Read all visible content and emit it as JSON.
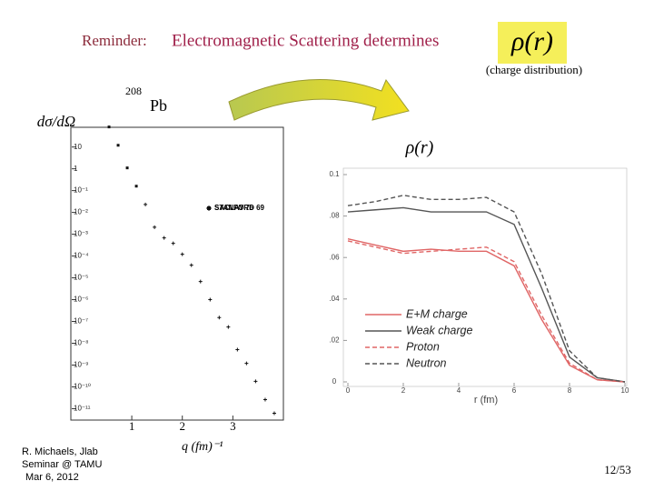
{
  "slide": {
    "reminder": "Reminder:",
    "heading": "Electromagnetic Scattering  determines",
    "rho": "ρ(r)",
    "note": "(charge distribution)",
    "mass_number": "208",
    "element": "Pb",
    "author": [
      "R. Michaels,  Jlab",
      "Seminar @ TAMU",
      "Mar 6, 2012"
    ],
    "page": "12/53"
  },
  "chart_data": [
    {
      "type": "scatter",
      "ylabel": "dσ/dΩ",
      "xlabel": "q  (fm)⁻¹",
      "log_y": true,
      "xlim": [
        0.1,
        4.0
      ],
      "xticks": [
        1,
        2,
        3
      ],
      "ylim": [
        3e-12,
        80
      ],
      "yticks": [
        10,
        1,
        {
          "value": 0.1,
          "label": "10⁻¹"
        },
        {
          "value": 0.01,
          "label": "10⁻²"
        },
        {
          "value": 0.001,
          "label": "10⁻³"
        },
        {
          "value": 0.0001,
          "label": "10⁻⁴"
        },
        {
          "value": 1e-05,
          "label": "10⁻⁵"
        },
        {
          "value": 1e-06,
          "label": "10⁻⁶"
        },
        {
          "value": 1e-07,
          "label": "10⁻⁷"
        },
        {
          "value": 1e-08,
          "label": "10⁻⁸"
        },
        {
          "value": 1e-09,
          "label": "10⁻⁹"
        },
        {
          "value": 1e-10,
          "label": "10⁻¹⁰"
        },
        {
          "value": 1e-11,
          "label": "10⁻¹¹"
        }
      ],
      "series": [
        {
          "name": "STANFORD 69",
          "color": "#111111",
          "marker": "square",
          "x": [
            0.55,
            0.73,
            0.91,
            1.09
          ],
          "values": [
            83,
            12,
            1.1,
            0.16
          ]
        },
        {
          "name": "SACLAY 76",
          "color": "#111111",
          "marker": "plus",
          "x": [
            1.27,
            1.45,
            1.64,
            1.82,
            2.0,
            2.18,
            2.36,
            2.55,
            2.73,
            2.91,
            3.09,
            3.27,
            3.45,
            3.64,
            3.82
          ],
          "values": [
            0.023,
            0.0021,
            0.00068,
            0.00038,
            0.00012,
            3.8e-05,
            6.8e-06,
            1e-06,
            1.5e-07,
            5.6e-08,
            5.1e-09,
            1.2e-09,
            1.8e-10,
            2.6e-11,
            6.2e-12
          ]
        }
      ]
    },
    {
      "type": "line",
      "xlabel": "r (fm)",
      "x": [
        0,
        1,
        2,
        3,
        4,
        5,
        6,
        7,
        8,
        9,
        10
      ],
      "xlim": [
        0,
        10
      ],
      "xticks": [
        0,
        2,
        4,
        6,
        8,
        10
      ],
      "ylim": [
        0,
        0.1
      ],
      "yticks": [
        0,
        {
          "value": 0.02,
          "label": ".02"
        },
        {
          "value": 0.04,
          "label": ".04"
        },
        {
          "value": 0.06,
          "label": ".06"
        },
        {
          "value": 0.08,
          "label": ".08"
        },
        0.1
      ],
      "series": [
        {
          "name": "E+M charge",
          "color": "#e06666",
          "dashed": false,
          "values": [
            0.069,
            0.066,
            0.063,
            0.064,
            0.063,
            0.063,
            0.056,
            0.03,
            0.008,
            0.001,
            0
          ]
        },
        {
          "name": "Weak charge",
          "color": "#555555",
          "dashed": false,
          "values": [
            0.082,
            0.083,
            0.084,
            0.082,
            0.082,
            0.082,
            0.076,
            0.045,
            0.012,
            0.002,
            0
          ]
        },
        {
          "name": "Proton",
          "color": "#e06666",
          "dashed": true,
          "values": [
            0.068,
            0.065,
            0.062,
            0.063,
            0.064,
            0.065,
            0.058,
            0.032,
            0.009,
            0.001,
            0
          ]
        },
        {
          "name": "Neutron",
          "color": "#555555",
          "dashed": true,
          "values": [
            0.085,
            0.087,
            0.09,
            0.088,
            0.088,
            0.089,
            0.082,
            0.052,
            0.015,
            0.002,
            0
          ]
        }
      ]
    }
  ]
}
